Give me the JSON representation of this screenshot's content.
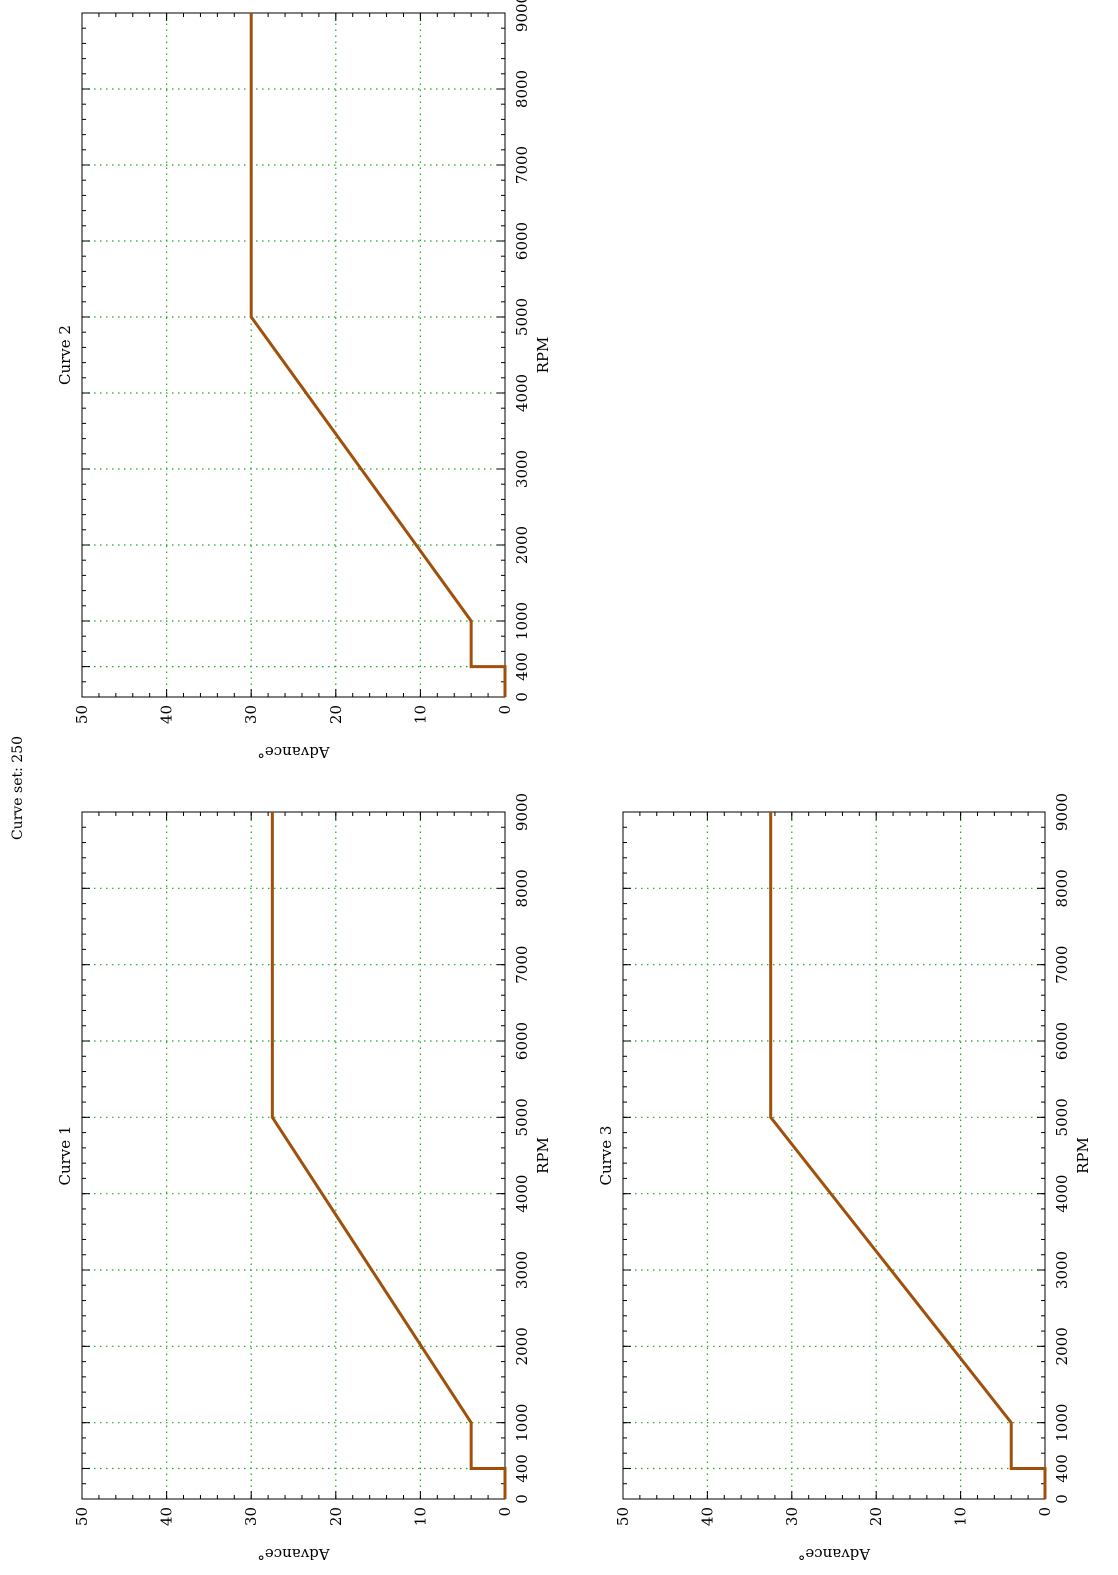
{
  "figure": {
    "super_title": "Curve set: 250",
    "line_color": "#a0500a",
    "grid_color": "#1fa81f"
  },
  "chart_data": [
    {
      "type": "line",
      "title": "Curve 1",
      "xlabel": "RPM",
      "ylabel": "Advance°",
      "xlim": [
        0,
        9000
      ],
      "ylim": [
        0,
        50
      ],
      "xticks": [
        0,
        400,
        1000,
        2000,
        3000,
        4000,
        5000,
        6000,
        7000,
        8000,
        9000
      ],
      "yticks": [
        0,
        10,
        20,
        30,
        40,
        50
      ],
      "grid": true,
      "x": [
        0,
        400,
        400,
        1000,
        5000,
        9000
      ],
      "y": [
        0,
        0,
        4,
        4,
        27.5,
        27.5
      ]
    },
    {
      "type": "line",
      "title": "Curve 2",
      "xlabel": "RPM",
      "ylabel": "Advance°",
      "xlim": [
        0,
        9000
      ],
      "ylim": [
        0,
        50
      ],
      "xticks": [
        0,
        400,
        1000,
        2000,
        3000,
        4000,
        5000,
        6000,
        7000,
        8000,
        9000
      ],
      "yticks": [
        0,
        10,
        20,
        30,
        40,
        50
      ],
      "grid": true,
      "x": [
        0,
        400,
        400,
        1000,
        5000,
        9000
      ],
      "y": [
        0,
        0,
        4,
        4,
        30,
        30
      ]
    },
    {
      "type": "line",
      "title": "Curve 3",
      "xlabel": "RPM",
      "ylabel": "Advance°",
      "xlim": [
        0,
        9000
      ],
      "ylim": [
        0,
        50
      ],
      "xticks": [
        0,
        400,
        1000,
        2000,
        3000,
        4000,
        5000,
        6000,
        7000,
        8000,
        9000
      ],
      "yticks": [
        0,
        10,
        20,
        30,
        40,
        50
      ],
      "grid": true,
      "x": [
        0,
        400,
        400,
        1000,
        5000,
        9000
      ],
      "y": [
        0,
        0,
        4,
        4,
        32.5,
        32.5
      ]
    }
  ]
}
